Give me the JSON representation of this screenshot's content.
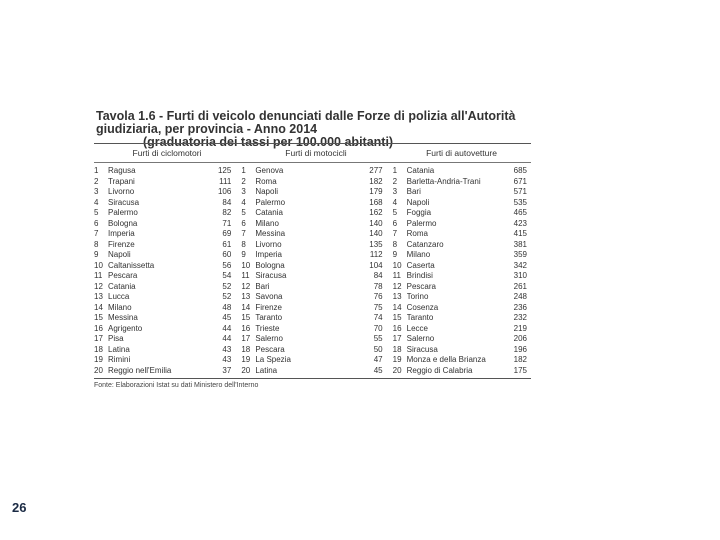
{
  "title": {
    "line1": "Tavola 1.6 - Furti di veicolo denunciati dalle Forze di polizia all'Autorità giudiziaria, per provincia - Anno 2014",
    "line2": "(graduatoria dei tassi per 100.000 abitanti)"
  },
  "table": {
    "columns": [
      "Furti di ciclomotori",
      "Furti di motocicli",
      "Furti di autovetture"
    ],
    "ciclomotori": [
      {
        "rank": "1",
        "name": "Ragusa",
        "value": "125"
      },
      {
        "rank": "2",
        "name": "Trapani",
        "value": "111"
      },
      {
        "rank": "3",
        "name": "Livorno",
        "value": "106"
      },
      {
        "rank": "4",
        "name": "Siracusa",
        "value": "84"
      },
      {
        "rank": "5",
        "name": "Palermo",
        "value": "82"
      },
      {
        "rank": "6",
        "name": "Bologna",
        "value": "71"
      },
      {
        "rank": "7",
        "name": "Imperia",
        "value": "69"
      },
      {
        "rank": "8",
        "name": "Firenze",
        "value": "61"
      },
      {
        "rank": "9",
        "name": "Napoli",
        "value": "60"
      },
      {
        "rank": "10",
        "name": "Caltanissetta",
        "value": "56"
      },
      {
        "rank": "11",
        "name": "Pescara",
        "value": "54"
      },
      {
        "rank": "12",
        "name": "Catania",
        "value": "52"
      },
      {
        "rank": "13",
        "name": "Lucca",
        "value": "52"
      },
      {
        "rank": "14",
        "name": "Milano",
        "value": "48"
      },
      {
        "rank": "15",
        "name": "Messina",
        "value": "45"
      },
      {
        "rank": "16",
        "name": "Agrigento",
        "value": "44"
      },
      {
        "rank": "17",
        "name": "Pisa",
        "value": "44"
      },
      {
        "rank": "18",
        "name": "Latina",
        "value": "43"
      },
      {
        "rank": "19",
        "name": "Rimini",
        "value": "43"
      },
      {
        "rank": "20",
        "name": "Reggio nell'Emilia",
        "value": "37"
      }
    ],
    "motocicli": [
      {
        "rank": "1",
        "name": "Genova",
        "value": "277"
      },
      {
        "rank": "2",
        "name": "Roma",
        "value": "182"
      },
      {
        "rank": "3",
        "name": "Napoli",
        "value": "179"
      },
      {
        "rank": "4",
        "name": "Palermo",
        "value": "168"
      },
      {
        "rank": "5",
        "name": "Catania",
        "value": "162"
      },
      {
        "rank": "6",
        "name": "Milano",
        "value": "140"
      },
      {
        "rank": "7",
        "name": "Messina",
        "value": "140"
      },
      {
        "rank": "8",
        "name": "Livorno",
        "value": "135"
      },
      {
        "rank": "9",
        "name": "Imperia",
        "value": "112"
      },
      {
        "rank": "10",
        "name": "Bologna",
        "value": "104"
      },
      {
        "rank": "11",
        "name": "Siracusa",
        "value": "84"
      },
      {
        "rank": "12",
        "name": "Bari",
        "value": "78"
      },
      {
        "rank": "13",
        "name": "Savona",
        "value": "76"
      },
      {
        "rank": "14",
        "name": "Firenze",
        "value": "75"
      },
      {
        "rank": "15",
        "name": "Taranto",
        "value": "74"
      },
      {
        "rank": "16",
        "name": "Trieste",
        "value": "70"
      },
      {
        "rank": "17",
        "name": "Salerno",
        "value": "55"
      },
      {
        "rank": "18",
        "name": "Pescara",
        "value": "50"
      },
      {
        "rank": "19",
        "name": "La Spezia",
        "value": "47"
      },
      {
        "rank": "20",
        "name": "Latina",
        "value": "45"
      }
    ],
    "autovetture": [
      {
        "rank": "1",
        "name": "Catania",
        "value": "685"
      },
      {
        "rank": "2",
        "name": "Barletta-Andria-Trani",
        "value": "671"
      },
      {
        "rank": "3",
        "name": "Bari",
        "value": "571"
      },
      {
        "rank": "4",
        "name": "Napoli",
        "value": "535"
      },
      {
        "rank": "5",
        "name": "Foggia",
        "value": "465"
      },
      {
        "rank": "6",
        "name": "Palermo",
        "value": "423"
      },
      {
        "rank": "7",
        "name": "Roma",
        "value": "415"
      },
      {
        "rank": "8",
        "name": "Catanzaro",
        "value": "381"
      },
      {
        "rank": "9",
        "name": "Milano",
        "value": "359"
      },
      {
        "rank": "10",
        "name": "Caserta",
        "value": "342"
      },
      {
        "rank": "11",
        "name": "Brindisi",
        "value": "310"
      },
      {
        "rank": "12",
        "name": "Pescara",
        "value": "261"
      },
      {
        "rank": "13",
        "name": "Torino",
        "value": "248"
      },
      {
        "rank": "14",
        "name": "Cosenza",
        "value": "236"
      },
      {
        "rank": "15",
        "name": "Taranto",
        "value": "232"
      },
      {
        "rank": "16",
        "name": "Lecce",
        "value": "219"
      },
      {
        "rank": "17",
        "name": "Salerno",
        "value": "206"
      },
      {
        "rank": "18",
        "name": "Siracusa",
        "value": "196"
      },
      {
        "rank": "19",
        "name": "Monza e della Brianza",
        "value": "182"
      },
      {
        "rank": "20",
        "name": "Reggio di Calabria",
        "value": "175"
      }
    ]
  },
  "source": "Fonte: Elaborazioni Istat su dati Ministero dell'Interno",
  "page_number": "26"
}
